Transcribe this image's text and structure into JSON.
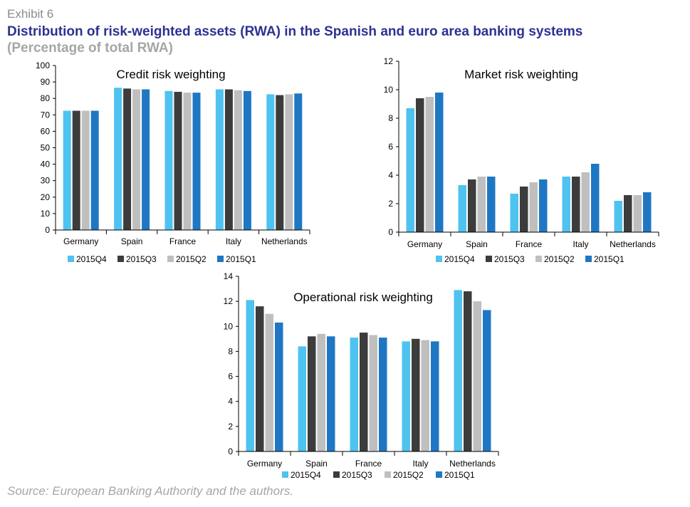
{
  "header": {
    "exhibit": "Exhibit 6",
    "title": "Distribution of risk-weighted assets (RWA) in the Spanish and euro area banking systems",
    "subtitle": "(Percentage of total RWA)"
  },
  "footer": {
    "source": "Source: European Banking Authority and the authors."
  },
  "colors": {
    "2015Q4": "#4fc3f0",
    "2015Q3": "#3c3c3c",
    "2015Q2": "#bfbfbf",
    "2015Q1": "#1f77c4"
  },
  "chart_data": [
    {
      "type": "bar",
      "title": "Credit risk weighting",
      "categories": [
        "Germany",
        "Spain",
        "France",
        "Italy",
        "Netherlands"
      ],
      "ylim": [
        0,
        100
      ],
      "yticks": [
        "0",
        "10",
        "20",
        "30",
        "40",
        "50",
        "60",
        "70",
        "80",
        "90",
        "100"
      ],
      "legend_position": "bottom",
      "grid": false,
      "series": [
        {
          "name": "2015Q4",
          "values": [
            72.5,
            86.5,
            84.5,
            85.5,
            82.5
          ]
        },
        {
          "name": "2015Q3",
          "values": [
            72.5,
            86.0,
            84.0,
            85.5,
            82.0
          ]
        },
        {
          "name": "2015Q2",
          "values": [
            72.5,
            85.5,
            83.5,
            85.0,
            82.5
          ]
        },
        {
          "name": "2015Q1",
          "values": [
            72.5,
            85.5,
            83.5,
            84.5,
            83.0
          ]
        }
      ]
    },
    {
      "type": "bar",
      "title": "Market risk weighting",
      "categories": [
        "Germany",
        "Spain",
        "France",
        "Italy",
        "Netherlands"
      ],
      "ylim": [
        0,
        12
      ],
      "yticks": [
        "0",
        "2",
        "4",
        "6",
        "8",
        "10",
        "12"
      ],
      "legend_position": "bottom",
      "grid": false,
      "series": [
        {
          "name": "2015Q4",
          "values": [
            8.7,
            3.3,
            2.7,
            3.9,
            2.2
          ]
        },
        {
          "name": "2015Q3",
          "values": [
            9.4,
            3.7,
            3.2,
            3.9,
            2.6
          ]
        },
        {
          "name": "2015Q2",
          "values": [
            9.5,
            3.9,
            3.5,
            4.2,
            2.6
          ]
        },
        {
          "name": "2015Q1",
          "values": [
            9.8,
            3.9,
            3.7,
            4.8,
            2.8
          ]
        }
      ]
    },
    {
      "type": "bar",
      "title": "Operational risk weighting",
      "categories": [
        "Germany",
        "Spain",
        "France",
        "Italy",
        "Netherlands"
      ],
      "ylim": [
        0,
        14
      ],
      "yticks": [
        "0",
        "2",
        "4",
        "6",
        "8",
        "10",
        "12",
        "14"
      ],
      "legend_position": "bottom",
      "grid": false,
      "series": [
        {
          "name": "2015Q4",
          "values": [
            12.1,
            8.4,
            9.1,
            8.8,
            12.9
          ]
        },
        {
          "name": "2015Q3",
          "values": [
            11.6,
            9.2,
            9.5,
            9.0,
            12.8
          ]
        },
        {
          "name": "2015Q2",
          "values": [
            11.0,
            9.4,
            9.3,
            8.9,
            12.0
          ]
        },
        {
          "name": "2015Q1",
          "values": [
            10.3,
            9.2,
            9.1,
            8.8,
            11.3
          ]
        }
      ]
    }
  ]
}
